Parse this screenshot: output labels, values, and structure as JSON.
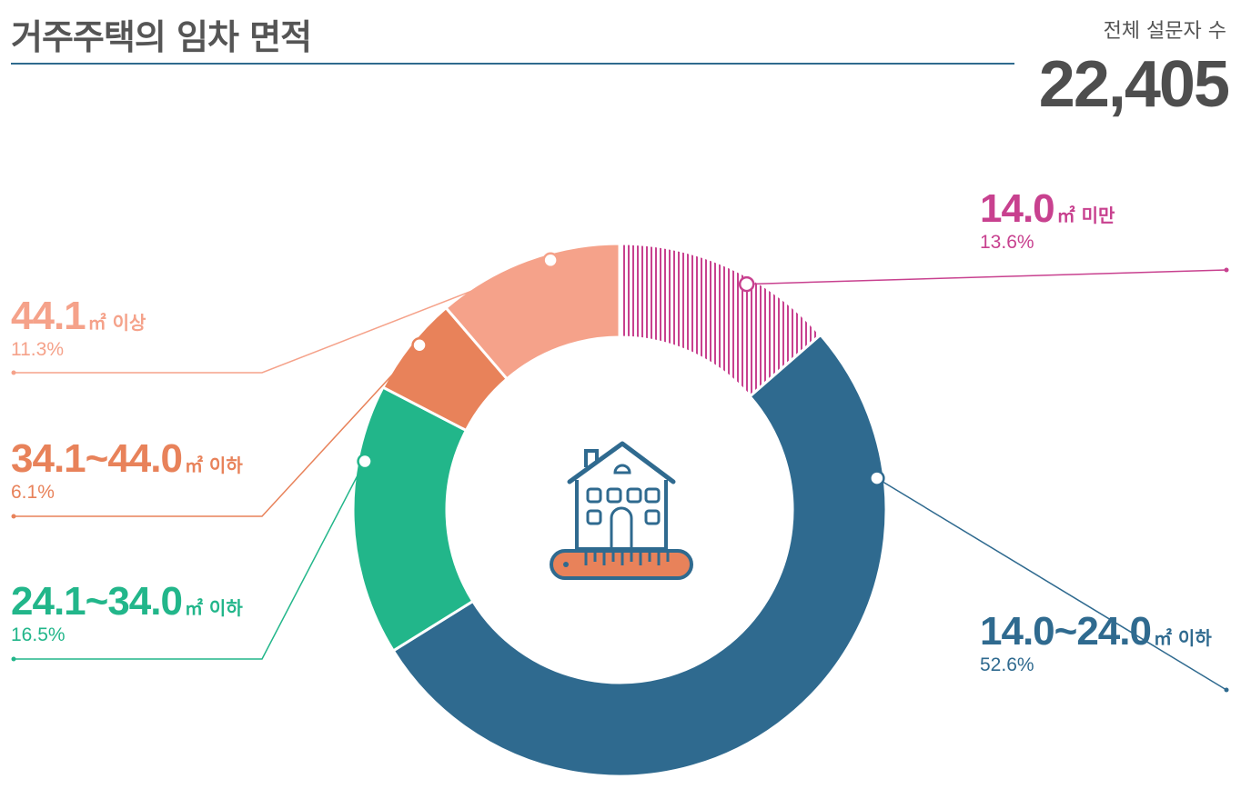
{
  "header": {
    "title": "거주주택의 임차 면적",
    "respondents_label": "전체 설문자 수",
    "respondents_value": "22,405"
  },
  "colors": {
    "under14": "#c8418f",
    "r14_24": "#2f6a8f",
    "r24_34": "#22b68a",
    "r34_44": "#e8825a",
    "over44": "#f5a28a"
  },
  "chart_data": {
    "type": "pie",
    "title": "거주주택의 임차 면적",
    "unit": "㎡",
    "categories": [
      "14.0㎡ 미만",
      "14.0~24.0㎡ 이하",
      "24.1~34.0㎡ 이하",
      "34.1~44.0㎡ 이하",
      "44.1㎡ 이상"
    ],
    "values": [
      13.6,
      52.6,
      16.5,
      6.1,
      11.3
    ],
    "labels": [
      {
        "name": "14.0",
        "unit": "㎡ 미만",
        "pct": "13.6%",
        "color": "#c8418f",
        "hatched": true
      },
      {
        "name": "14.0~24.0",
        "unit": "㎡ 이하",
        "pct": "52.6%",
        "color": "#2f6a8f",
        "hatched": false
      },
      {
        "name": "24.1~34.0",
        "unit": "㎡ 이하",
        "pct": "16.5%",
        "color": "#22b68a",
        "hatched": false
      },
      {
        "name": "34.1~44.0",
        "unit": "㎡ 이하",
        "pct": "6.1%",
        "color": "#e8825a",
        "hatched": false
      },
      {
        "name": "44.1",
        "unit": "㎡ 이상",
        "pct": "11.3%",
        "color": "#f5a28a",
        "hatched": false
      }
    ],
    "legend": "callouts"
  }
}
